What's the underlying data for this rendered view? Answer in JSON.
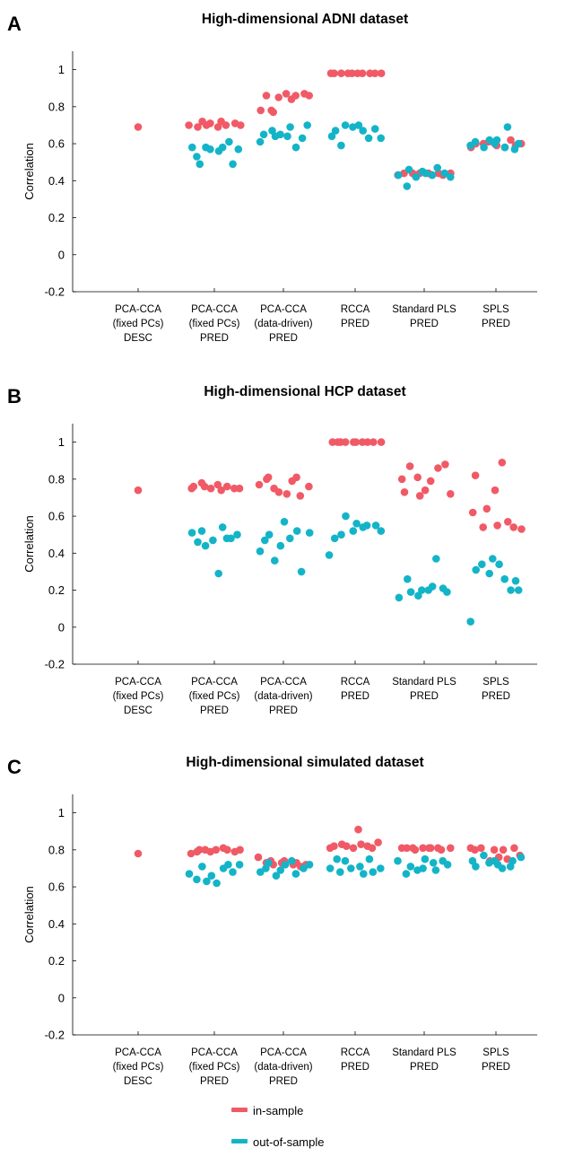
{
  "colors": {
    "in_sample": "#f05a66",
    "out_of_sample": "#14b4c8"
  },
  "legend": {
    "in_label": "in-sample",
    "out_label": "out-of-sample"
  },
  "chart_data": [
    {
      "type": "scatter",
      "letter": "A",
      "title": "High-dimensional ADNI dataset",
      "ylabel": "Correlation",
      "ylim": [
        -0.2,
        1.1
      ],
      "yticks": [
        "1",
        "0.8",
        "0.6",
        "0.4",
        "0.2",
        "0",
        "-0.2"
      ],
      "categories": [
        [
          "PCA-CCA",
          "(fixed PCs)",
          "DESC"
        ],
        [
          "PCA-CCA",
          "(fixed PCs)",
          "PRED"
        ],
        [
          "PCA-CCA",
          "(data-driven)",
          "PRED"
        ],
        [
          "RCCA",
          "PRED"
        ],
        [
          "Standard PLS",
          "PRED"
        ],
        [
          "SPLS",
          "PRED"
        ]
      ],
      "series": [
        {
          "key": "in_sample",
          "values": [
            [
              0.69
            ],
            [
              0.7,
              0.69,
              0.72,
              0.7,
              0.71,
              0.69,
              0.72,
              0.7,
              0.71,
              0.7
            ],
            [
              0.78,
              0.86,
              0.78,
              0.77,
              0.85,
              0.87,
              0.84,
              0.86,
              0.87,
              0.86
            ],
            [
              0.98,
              0.98,
              0.98,
              0.98,
              0.98,
              0.98,
              0.98,
              0.98,
              0.98,
              0.98
            ],
            [
              0.43,
              0.44,
              0.44,
              0.43,
              0.44,
              0.44,
              0.43,
              0.44,
              0.43,
              0.44
            ],
            [
              0.58,
              0.6,
              0.6,
              0.61,
              0.6,
              0.59,
              0.58,
              0.62,
              0.59,
              0.6
            ]
          ]
        },
        {
          "key": "out_of_sample",
          "values": [
            [],
            [
              0.58,
              0.53,
              0.49,
              0.58,
              0.57,
              0.56,
              0.58,
              0.61,
              0.49,
              0.57
            ],
            [
              0.61,
              0.65,
              0.67,
              0.64,
              0.65,
              0.64,
              0.69,
              0.58,
              0.63,
              0.7
            ],
            [
              0.64,
              0.67,
              0.59,
              0.7,
              0.69,
              0.7,
              0.67,
              0.63,
              0.68,
              0.63
            ],
            [
              0.43,
              0.37,
              0.46,
              0.42,
              0.45,
              0.44,
              0.43,
              0.47,
              0.44,
              0.42
            ],
            [
              0.59,
              0.61,
              0.58,
              0.62,
              0.6,
              0.62,
              0.58,
              0.69,
              0.57,
              0.6
            ]
          ]
        }
      ]
    },
    {
      "type": "scatter",
      "letter": "B",
      "title": "High-dimensional HCP dataset",
      "ylabel": "Correlation",
      "ylim": [
        -0.2,
        1.1
      ],
      "yticks": [
        "1",
        "0.8",
        "0.6",
        "0.4",
        "0.2",
        "0",
        "-0.2"
      ],
      "categories": [
        [
          "PCA-CCA",
          "(fixed PCs)",
          "DESC"
        ],
        [
          "PCA-CCA",
          "(fixed PCs)",
          "PRED"
        ],
        [
          "PCA-CCA",
          "(data-driven)",
          "PRED"
        ],
        [
          "RCCA",
          "PRED"
        ],
        [
          "Standard PLS",
          "PRED"
        ],
        [
          "SPLS",
          "PRED"
        ]
      ],
      "series": [
        {
          "key": "in_sample",
          "values": [
            [
              0.74
            ],
            [
              0.75,
              0.76,
              0.78,
              0.76,
              0.75,
              0.77,
              0.74,
              0.76,
              0.75,
              0.75
            ],
            [
              0.77,
              0.8,
              0.81,
              0.75,
              0.73,
              0.72,
              0.79,
              0.81,
              0.71,
              0.76
            ],
            [
              1.0,
              1.0,
              1.0,
              1.0,
              1.0,
              1.0,
              1.0,
              1.0,
              1.0,
              1.0
            ],
            [
              0.8,
              0.73,
              0.87,
              0.81,
              0.71,
              0.74,
              0.79,
              0.86,
              0.88,
              0.72
            ],
            [
              0.62,
              0.82,
              0.54,
              0.64,
              0.74,
              0.55,
              0.89,
              0.57,
              0.54,
              0.53
            ]
          ]
        },
        {
          "key": "out_of_sample",
          "values": [
            [],
            [
              0.51,
              0.46,
              0.52,
              0.44,
              0.47,
              0.29,
              0.54,
              0.48,
              0.48,
              0.5
            ],
            [
              0.41,
              0.47,
              0.5,
              0.36,
              0.44,
              0.57,
              0.48,
              0.52,
              0.3,
              0.51
            ],
            [
              0.39,
              0.48,
              0.5,
              0.6,
              0.52,
              0.56,
              0.54,
              0.55,
              0.55,
              0.52
            ],
            [
              0.16,
              0.26,
              0.19,
              0.17,
              0.2,
              0.2,
              0.22,
              0.37,
              0.21,
              0.19
            ],
            [
              0.03,
              0.31,
              0.34,
              0.29,
              0.37,
              0.34,
              0.26,
              0.2,
              0.25,
              0.2
            ]
          ]
        }
      ]
    },
    {
      "type": "scatter",
      "letter": "C",
      "title": "High-dimensional simulated dataset",
      "ylabel": "Correlation",
      "ylim": [
        -0.2,
        1.1
      ],
      "yticks": [
        "1",
        "0.8",
        "0.6",
        "0.4",
        "0.2",
        "0",
        "-0.2"
      ],
      "categories": [
        [
          "PCA-CCA",
          "(fixed PCs)",
          "DESC"
        ],
        [
          "PCA-CCA",
          "(fixed PCs)",
          "PRED"
        ],
        [
          "PCA-CCA",
          "(data-driven)",
          "PRED"
        ],
        [
          "RCCA",
          "PRED"
        ],
        [
          "Standard PLS",
          "PRED"
        ],
        [
          "SPLS",
          "PRED"
        ]
      ],
      "series": [
        {
          "key": "in_sample",
          "values": [
            [
              0.78
            ],
            [
              0.78,
              0.79,
              0.8,
              0.8,
              0.79,
              0.8,
              0.81,
              0.8,
              0.79,
              0.8
            ],
            [
              0.76,
              0.73,
              0.74,
              0.72,
              0.73,
              0.74,
              0.72,
              0.73,
              0.71,
              0.72
            ],
            [
              0.81,
              0.82,
              0.83,
              0.82,
              0.81,
              0.91,
              0.83,
              0.82,
              0.81,
              0.84
            ],
            [
              0.81,
              0.81,
              0.81,
              0.8,
              0.81,
              0.81,
              0.81,
              0.81,
              0.8,
              0.81
            ],
            [
              0.81,
              0.8,
              0.81,
              0.74,
              0.8,
              0.76,
              0.8,
              0.75,
              0.81,
              0.77
            ]
          ]
        },
        {
          "key": "out_of_sample",
          "values": [
            [],
            [
              0.67,
              0.64,
              0.71,
              0.63,
              0.66,
              0.62,
              0.7,
              0.72,
              0.68,
              0.72
            ],
            [
              0.68,
              0.7,
              0.73,
              0.66,
              0.69,
              0.72,
              0.74,
              0.67,
              0.7,
              0.72
            ],
            [
              0.7,
              0.75,
              0.68,
              0.74,
              0.7,
              0.71,
              0.67,
              0.75,
              0.68,
              0.7
            ],
            [
              0.74,
              0.67,
              0.71,
              0.69,
              0.7,
              0.75,
              0.73,
              0.69,
              0.74,
              0.72
            ],
            [
              0.74,
              0.71,
              0.77,
              0.73,
              0.74,
              0.72,
              0.7,
              0.71,
              0.74,
              0.76
            ]
          ]
        }
      ]
    }
  ]
}
